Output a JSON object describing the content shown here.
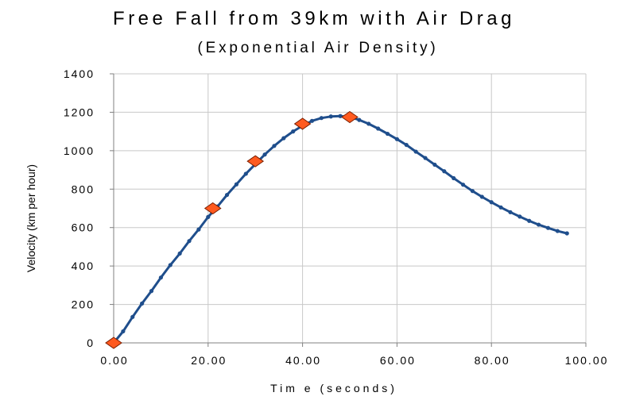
{
  "chart_data": {
    "type": "scatter",
    "title": "Free Fall from 39km with Air Drag",
    "subtitle": "(Exponential Air Density)",
    "xlabel": "Tim e (seconds)",
    "ylabel": "Velocity (km per hour)",
    "xlim": [
      0,
      100
    ],
    "ylim": [
      0,
      1400
    ],
    "x_ticks": [
      0,
      20,
      40,
      60,
      80,
      100
    ],
    "x_tick_labels": [
      "0.00",
      "20.00",
      "40.00",
      "60.00",
      "80.00",
      "100.00"
    ],
    "y_ticks": [
      0,
      200,
      400,
      600,
      800,
      1000,
      1200,
      1400
    ],
    "y_tick_labels": [
      "0",
      "200",
      "400",
      "600",
      "800",
      "1000",
      "1200",
      "1400"
    ],
    "grid": true,
    "series": [
      {
        "color": "#1f4e8c",
        "marker": "dot",
        "points": [
          [
            0,
            0
          ],
          [
            2,
            60
          ],
          [
            4,
            135
          ],
          [
            6,
            205
          ],
          [
            8,
            270
          ],
          [
            10,
            340
          ],
          [
            12,
            405
          ],
          [
            14,
            465
          ],
          [
            16,
            530
          ],
          [
            18,
            590
          ],
          [
            20,
            655
          ],
          [
            22,
            710
          ],
          [
            24,
            770
          ],
          [
            26,
            825
          ],
          [
            28,
            880
          ],
          [
            30,
            930
          ],
          [
            32,
            980
          ],
          [
            34,
            1025
          ],
          [
            36,
            1065
          ],
          [
            38,
            1100
          ],
          [
            40,
            1130
          ],
          [
            42,
            1155
          ],
          [
            44,
            1170
          ],
          [
            46,
            1178
          ],
          [
            48,
            1180
          ],
          [
            50,
            1175
          ],
          [
            52,
            1160
          ],
          [
            54,
            1140
          ],
          [
            56,
            1115
          ],
          [
            58,
            1088
          ],
          [
            60,
            1060
          ],
          [
            62,
            1030
          ],
          [
            64,
            995
          ],
          [
            66,
            962
          ],
          [
            68,
            927
          ],
          [
            70,
            893
          ],
          [
            72,
            857
          ],
          [
            74,
            823
          ],
          [
            76,
            790
          ],
          [
            78,
            760
          ],
          [
            80,
            732
          ],
          [
            82,
            705
          ],
          [
            84,
            680
          ],
          [
            86,
            657
          ],
          [
            88,
            635
          ],
          [
            90,
            615
          ],
          [
            92,
            598
          ],
          [
            94,
            582
          ],
          [
            96,
            570
          ]
        ]
      },
      {
        "color": "#ff5a1f",
        "marker": "diamond",
        "points": [
          [
            0,
            0
          ],
          [
            21,
            700
          ],
          [
            30,
            945
          ],
          [
            40,
            1140
          ],
          [
            50,
            1175
          ]
        ]
      }
    ]
  }
}
